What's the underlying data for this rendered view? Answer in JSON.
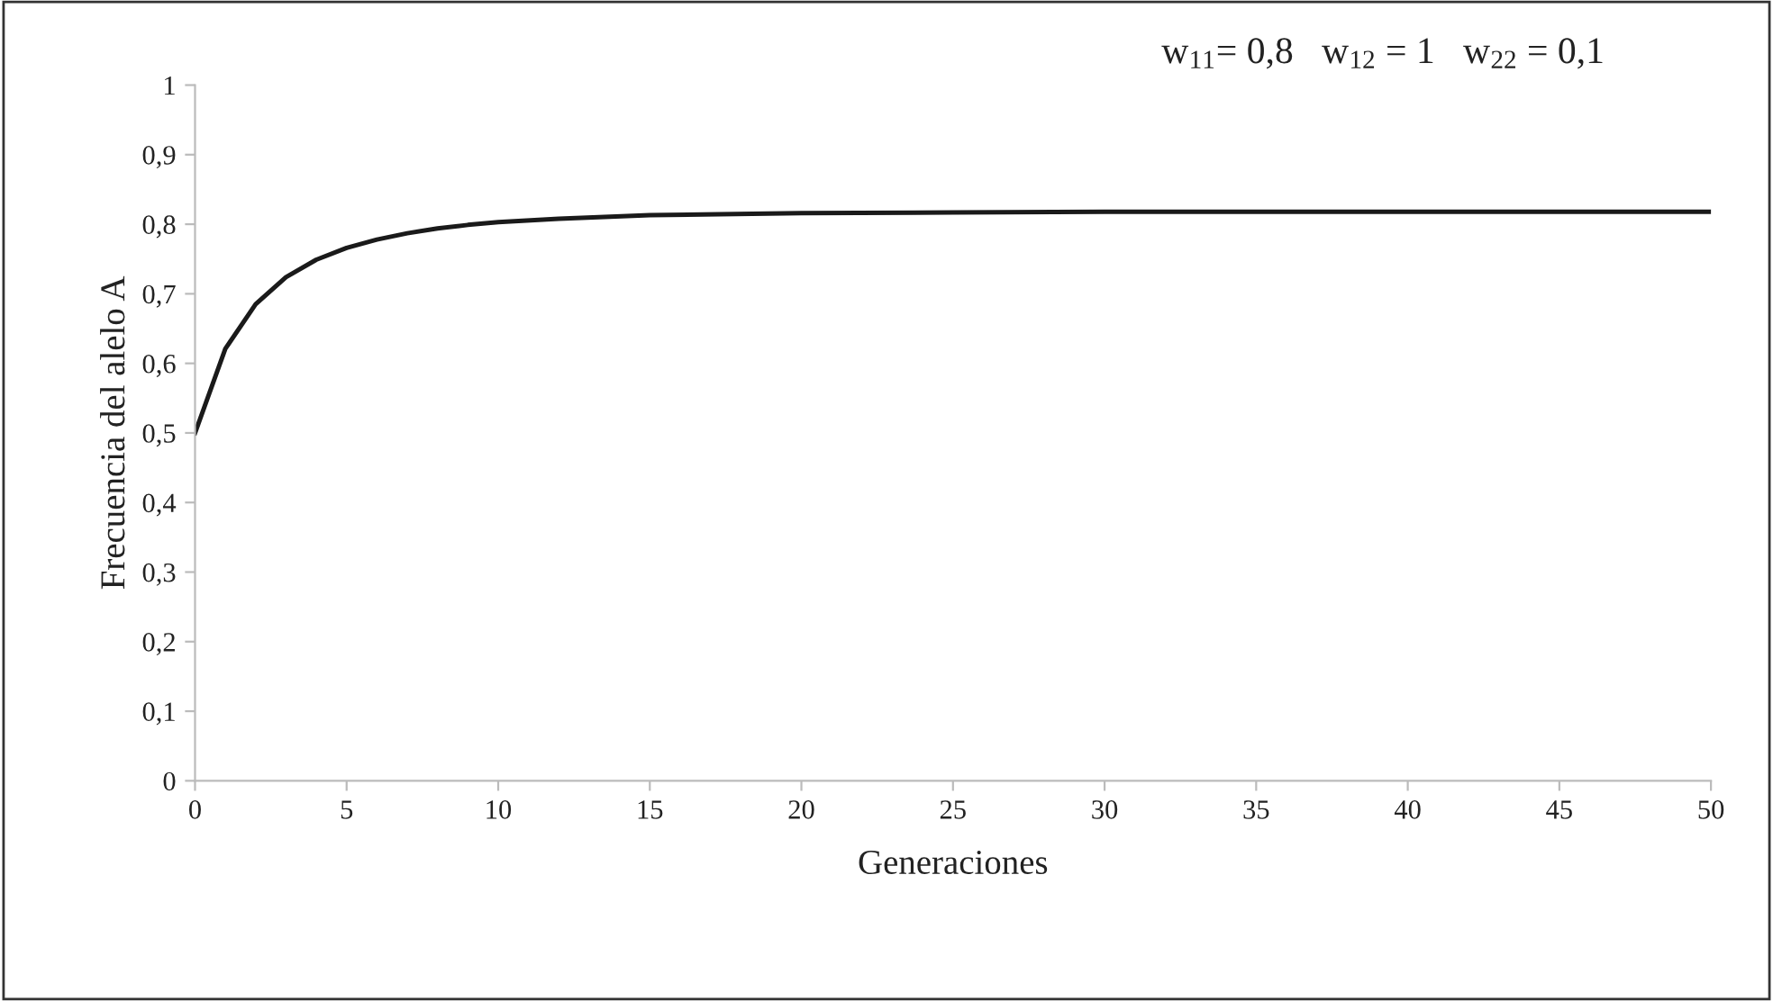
{
  "chart_data": {
    "type": "line",
    "xlabel": "Generaciones",
    "ylabel": "Frecuencia del alelo A",
    "annotations": [
      "w$_{11}$= 0,8   w$_{12}$ = 1   w$_{22}$ = 0,1"
    ],
    "x": [
      0,
      1,
      2,
      3,
      4,
      5,
      6,
      7,
      8,
      9,
      10,
      12,
      15,
      20,
      25,
      30,
      40,
      50
    ],
    "series": [
      {
        "color": "#1a1a1a",
        "values": [
          0.5,
          0.621,
          0.685,
          0.724,
          0.749,
          0.766,
          0.778,
          0.787,
          0.794,
          0.799,
          0.803,
          0.808,
          0.813,
          0.816,
          0.817,
          0.818,
          0.818,
          0.818
        ]
      }
    ],
    "xlim": [
      0,
      50
    ],
    "xticks": [
      0,
      5,
      10,
      15,
      20,
      25,
      30,
      35,
      40,
      45,
      50
    ],
    "ylim": [
      0,
      1
    ],
    "yticks": [
      0,
      {
        "value": 0.1,
        "label": "0,1"
      },
      {
        "value": 0.2,
        "label": "0,2"
      },
      {
        "value": 0.3,
        "label": "0,3"
      },
      {
        "value": 0.4,
        "label": "0,4"
      },
      {
        "value": 0.5,
        "label": "0,5"
      },
      {
        "value": 0.6,
        "label": "0,6"
      },
      {
        "value": 0.7,
        "label": "0,7"
      },
      {
        "value": 0.8,
        "label": "0,8"
      },
      {
        "value": 0.9,
        "label": "0,9"
      },
      1
    ],
    "grid": false,
    "legend": false,
    "marker": "none",
    "line_style": "solid"
  }
}
